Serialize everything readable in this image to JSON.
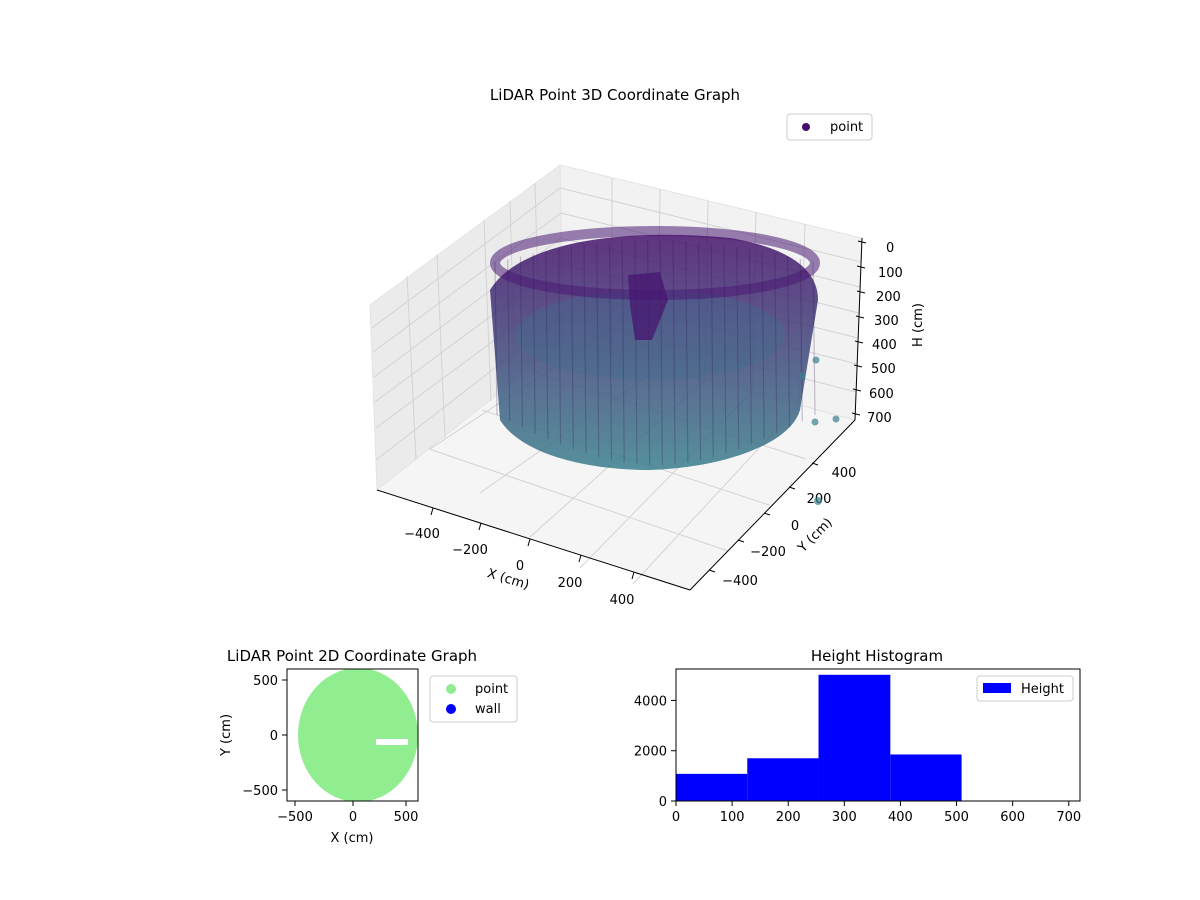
{
  "colors": {
    "point3d_legend": "#440f66",
    "point3d_top": "#46126c",
    "point3d_bottom": "#3a7f8c",
    "point2d": "#90ee90",
    "wall": "#0000ff",
    "histogram": "#0000ff"
  },
  "chart_data": [
    {
      "type": "scatter",
      "projection": "3d",
      "title": "LiDAR Point 3D Coordinate Graph",
      "xlabel": "X (cm)",
      "ylabel": "Y (cm)",
      "zlabel": "H (cm)",
      "x_ticks": [
        "−400",
        "−200",
        "0",
        "200",
        "400"
      ],
      "y_ticks": [
        "−400",
        "−200",
        "0",
        "200",
        "400"
      ],
      "z_ticks": [
        "0",
        "100",
        "200",
        "300",
        "400",
        "500",
        "600",
        "700"
      ],
      "zlim": [
        700,
        0
      ],
      "legend": [
        "point"
      ],
      "legend_position": "upper-right",
      "grid": true,
      "series": [
        {
          "name": "point",
          "shape": "cylindrical wall of points, radius ≈ 550 cm, height 0–700 cm, with an interior cluster near the center"
        }
      ]
    },
    {
      "type": "scatter",
      "title": "LiDAR Point 2D Coordinate Graph",
      "xlabel": "X (cm)",
      "ylabel": "Y (cm)",
      "x_ticks": [
        "−500",
        "0",
        "500"
      ],
      "y_ticks": [
        "−500",
        "0",
        "500"
      ],
      "xlim": [
        -590,
        590
      ],
      "ylim": [
        -600,
        600
      ],
      "legend": [
        "point",
        "wall"
      ],
      "legend_position": "outside-right",
      "series": [
        {
          "name": "point",
          "shape": "filled disc, radius ≈ 550 cm, centered near (50, 0)"
        },
        {
          "name": "wall"
        }
      ]
    },
    {
      "type": "bar",
      "title": "Height Histogram",
      "x_ticks": [
        "0",
        "100",
        "200",
        "300",
        "400",
        "500",
        "600",
        "700"
      ],
      "y_ticks": [
        "0",
        "2000",
        "4000"
      ],
      "xlim": [
        0,
        720
      ],
      "ylim": [
        0,
        5250
      ],
      "legend": [
        "Height"
      ],
      "legend_position": "upper-right",
      "bins": [
        {
          "x0": 0,
          "x1": 127,
          "value": 1080
        },
        {
          "x0": 127,
          "x1": 254,
          "value": 1700
        },
        {
          "x0": 254,
          "x1": 382,
          "value": 5020
        },
        {
          "x0": 382,
          "x1": 509,
          "value": 1850
        },
        {
          "x0": 509,
          "x1": 636,
          "value": 0
        },
        {
          "x0": 636,
          "x1": 700,
          "value": 0
        }
      ]
    }
  ]
}
